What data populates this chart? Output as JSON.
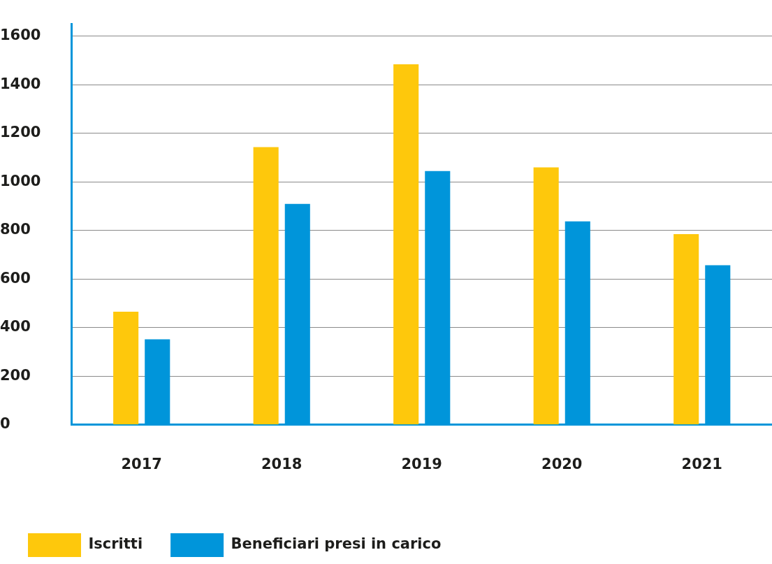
{
  "chart_data": {
    "type": "bar",
    "categories": [
      "2017",
      "2018",
      "2019",
      "2020",
      "2021"
    ],
    "series": [
      {
        "name": "Iscritti",
        "color": "#fec80c",
        "values": [
          466,
          1144,
          1485,
          1060,
          785
        ]
      },
      {
        "name": "Beneficiari presi in carico",
        "color": "#0095da",
        "values": [
          352,
          910,
          1045,
          838,
          657
        ]
      }
    ],
    "ylim": [
      0,
      1650
    ],
    "yticks": [
      0,
      200,
      400,
      600,
      800,
      1000,
      1200,
      1400,
      1600
    ],
    "grid": "y",
    "legend": "bottom left"
  }
}
